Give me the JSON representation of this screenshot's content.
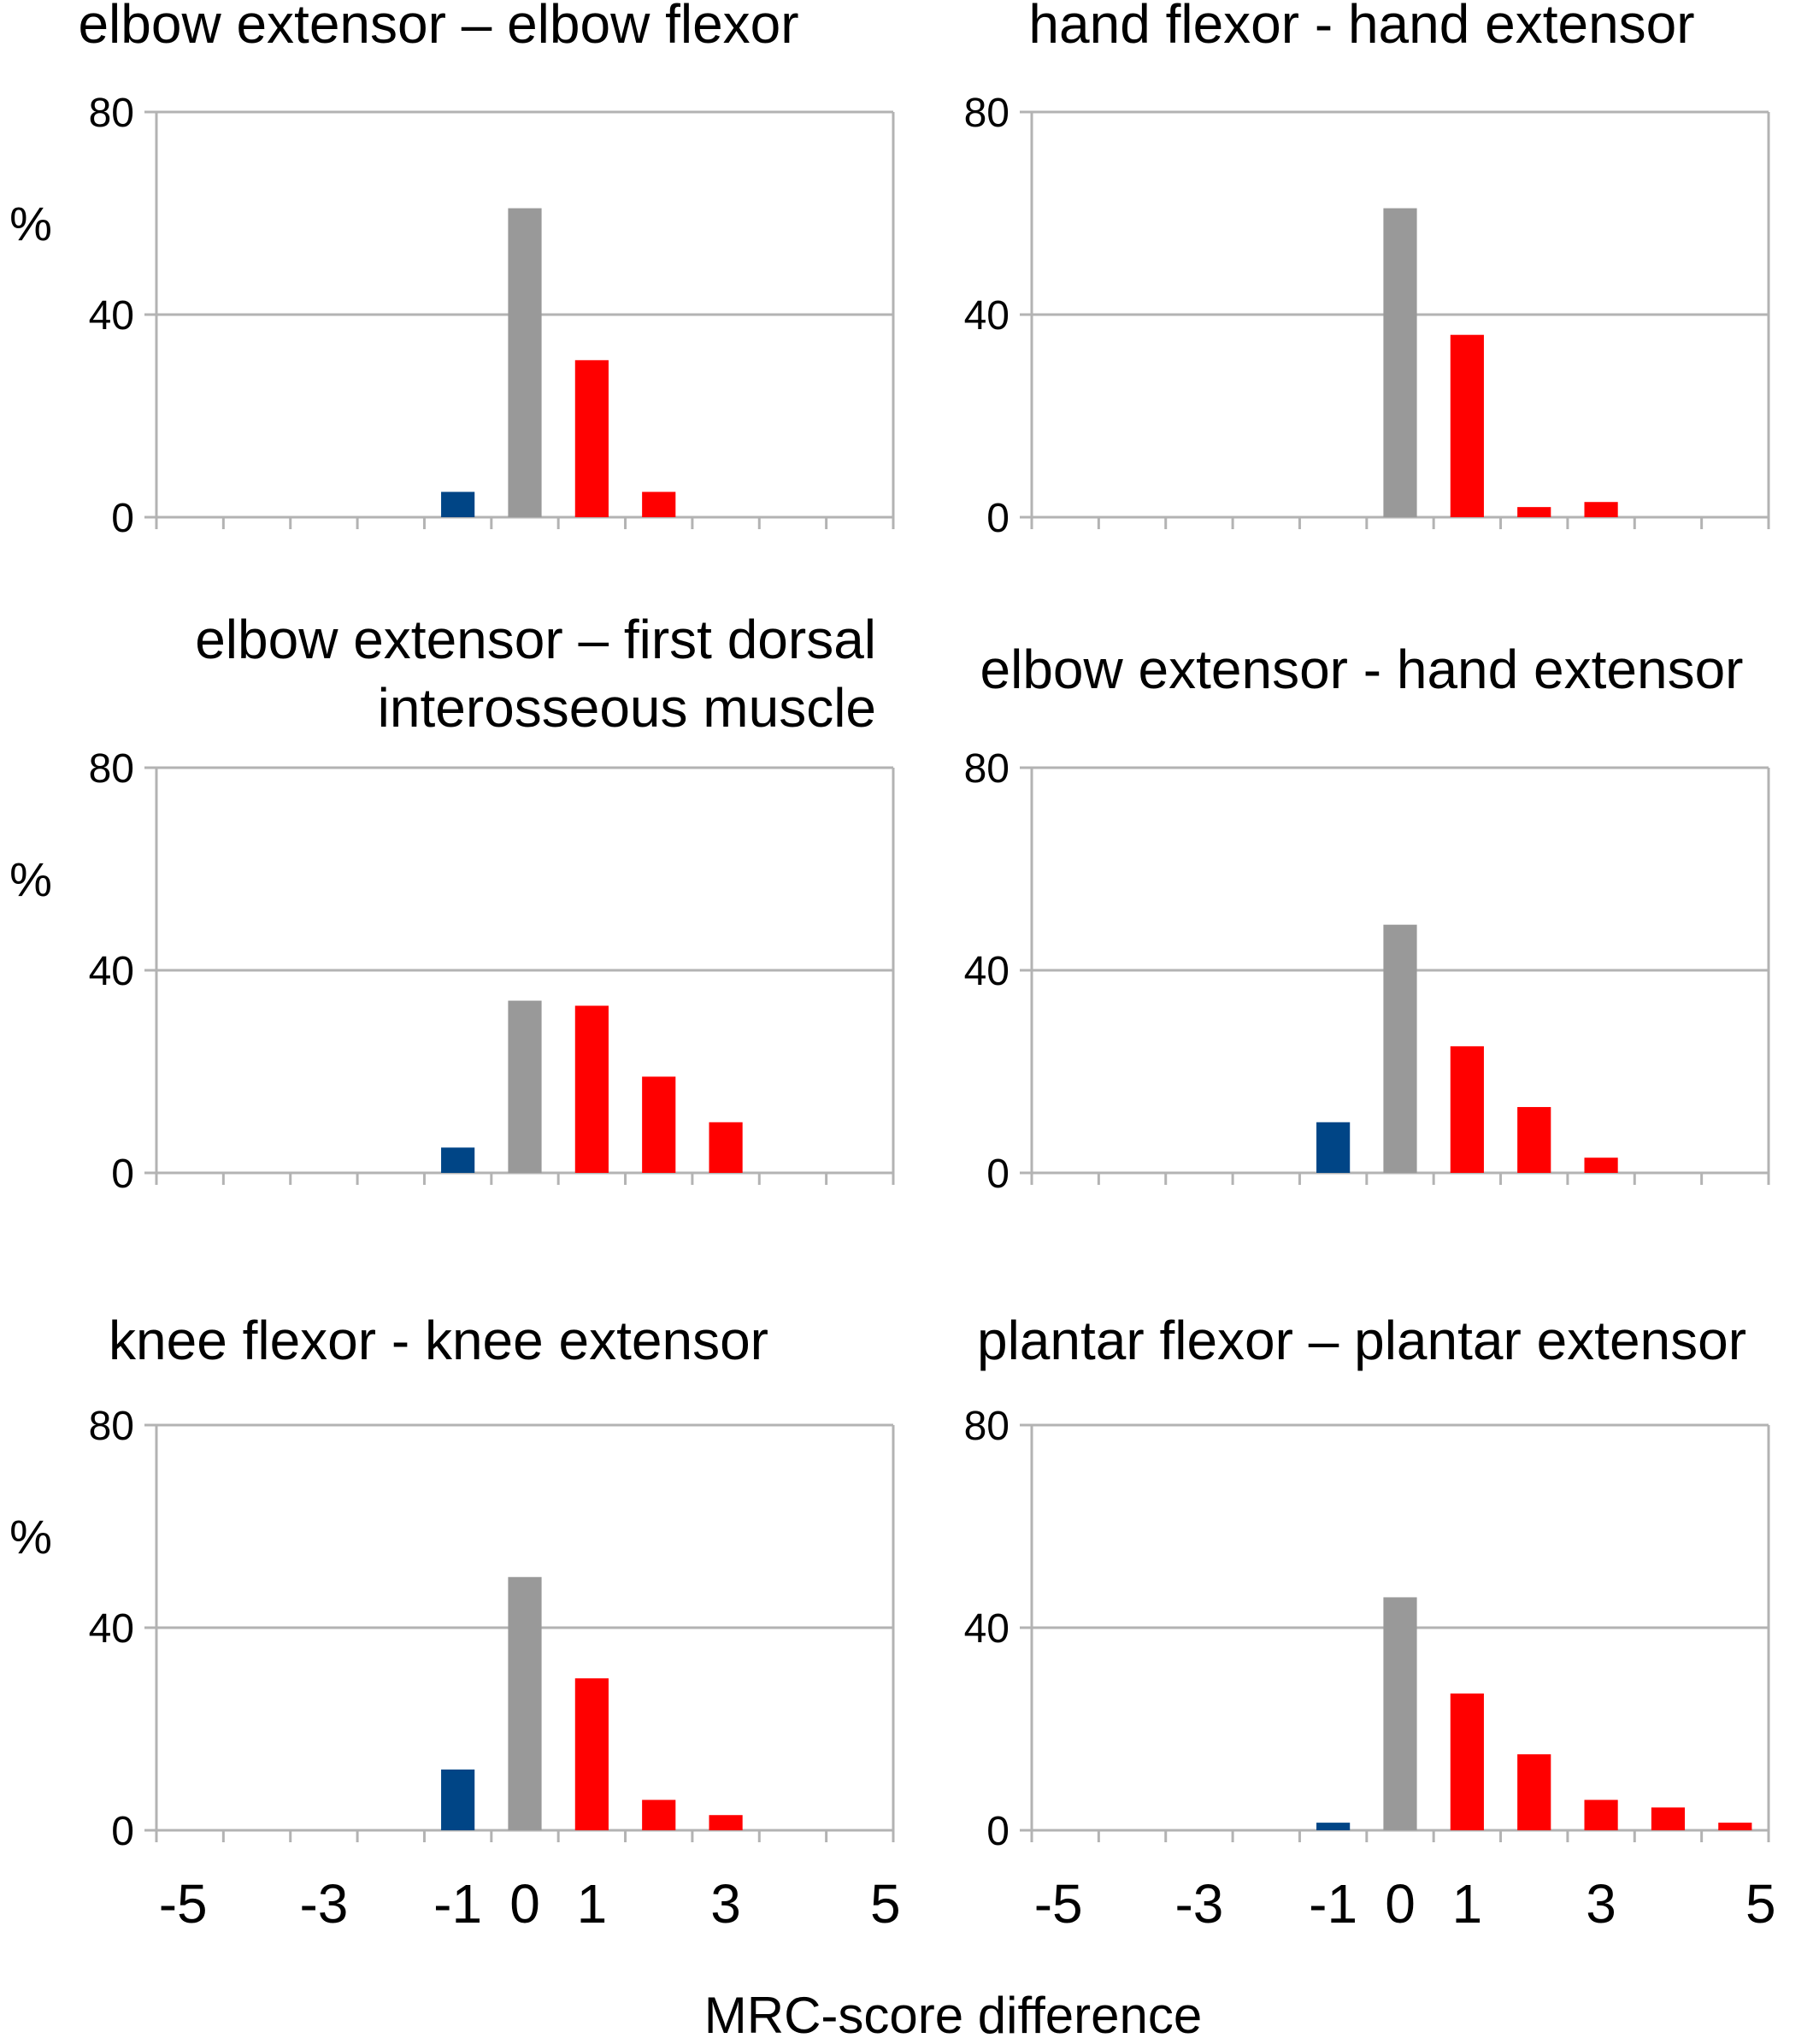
{
  "figure": {
    "xlabel": "MRC-score difference",
    "colors": {
      "negative": "#004586",
      "zero": "#999999",
      "positive": "#ff0000",
      "grid": "#b3b3b3",
      "axis": "#b3b3b3"
    }
  },
  "chart_data": [
    {
      "type": "bar",
      "title_lines": [
        "elbow extensor – elbow flexor"
      ],
      "ylabel": "%",
      "categories": [
        -5,
        -4,
        -3,
        -2,
        -1,
        0,
        1,
        2,
        3,
        4,
        5
      ],
      "values": [
        0,
        0,
        0,
        0,
        5,
        61,
        31,
        5,
        0,
        0,
        0
      ],
      "ylim": [
        0,
        80
      ],
      "yticks": [
        "0",
        "40",
        "80"
      ],
      "xtick_labels": [],
      "grid": true
    },
    {
      "type": "bar",
      "title_lines": [
        "hand flexor - hand extensor"
      ],
      "ylabel": "",
      "categories": [
        -5,
        -4,
        -3,
        -2,
        -1,
        0,
        1,
        2,
        3,
        4,
        5
      ],
      "values": [
        0,
        0,
        0,
        0,
        0,
        61,
        36,
        2,
        3,
        0,
        0
      ],
      "ylim": [
        0,
        80
      ],
      "yticks": [
        "0",
        "40",
        "80"
      ],
      "xtick_labels": [],
      "grid": true
    },
    {
      "type": "bar",
      "title_lines": [
        "elbow extensor – first dorsal",
        "interosseous muscle"
      ],
      "ylabel": "%",
      "categories": [
        -5,
        -4,
        -3,
        -2,
        -1,
        0,
        1,
        2,
        3,
        4,
        5
      ],
      "values": [
        0,
        0,
        0,
        0,
        5,
        34,
        33,
        19,
        10,
        0,
        0
      ],
      "ylim": [
        0,
        80
      ],
      "yticks": [
        "0",
        "40",
        "80"
      ],
      "xtick_labels": [],
      "grid": true
    },
    {
      "type": "bar",
      "title_lines": [
        "elbow extensor - hand extensor"
      ],
      "ylabel": "",
      "categories": [
        -5,
        -4,
        -3,
        -2,
        -1,
        0,
        1,
        2,
        3,
        4,
        5
      ],
      "values": [
        0,
        0,
        0,
        0,
        10,
        49,
        25,
        13,
        3,
        0,
        0
      ],
      "ylim": [
        0,
        80
      ],
      "yticks": [
        "0",
        "40",
        "80"
      ],
      "xtick_labels": [],
      "grid": true
    },
    {
      "type": "bar",
      "title_lines": [
        "knee flexor - knee extensor"
      ],
      "ylabel": "%",
      "categories": [
        -5,
        -4,
        -3,
        -2,
        -1,
        0,
        1,
        2,
        3,
        4,
        5
      ],
      "values": [
        0,
        0,
        0,
        0,
        12,
        50,
        30,
        6,
        3,
        0,
        0
      ],
      "ylim": [
        0,
        80
      ],
      "yticks": [
        "0",
        "40",
        "80"
      ],
      "xtick_labels": [
        "-5",
        "-3",
        "-1",
        "0",
        "1",
        "3",
        "5"
      ],
      "grid": true
    },
    {
      "type": "bar",
      "title_lines": [
        "plantar flexor – plantar extensor"
      ],
      "ylabel": "",
      "categories": [
        -5,
        -4,
        -3,
        -2,
        -1,
        0,
        1,
        2,
        3,
        4,
        5
      ],
      "values": [
        0,
        0,
        0,
        0,
        1.5,
        46,
        27,
        15,
        6,
        4.5,
        1.5
      ],
      "ylim": [
        0,
        80
      ],
      "yticks": [
        "0",
        "40",
        "80"
      ],
      "xtick_labels": [
        "-5",
        "-3",
        "-1",
        "0",
        "1",
        "3",
        "5"
      ],
      "grid": true
    }
  ]
}
